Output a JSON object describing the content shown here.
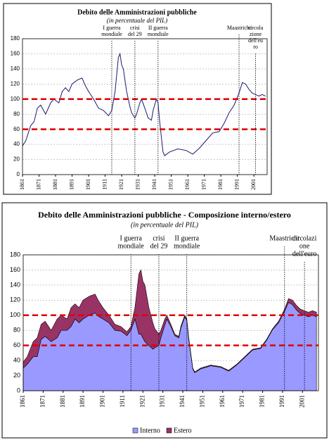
{
  "chart_data": [
    {
      "type": "line",
      "title": "Debito delle Amministrazioni pubbliche",
      "subtitle": "(in percentuale del PIL)",
      "x": [
        1861,
        1863,
        1866,
        1868,
        1870,
        1872,
        1875,
        1878,
        1880,
        1883,
        1885,
        1887,
        1889,
        1891,
        1894,
        1897,
        1899,
        1901,
        1904,
        1907,
        1910,
        1913,
        1915,
        1917,
        1919,
        1920,
        1921,
        1922,
        1924,
        1926,
        1927,
        1929,
        1930,
        1932,
        1933,
        1935,
        1937,
        1939,
        1940,
        1942,
        1943,
        1944,
        1946,
        1947,
        1950,
        1955,
        1960,
        1964,
        1968,
        1972,
        1976,
        1980,
        1983,
        1986,
        1989,
        1992,
        1994,
        1996,
        1998,
        2000,
        2002,
        2004,
        2006,
        2008
      ],
      "series": [
        {
          "color": "#1a1a6e",
          "values": [
            38,
            45,
            65,
            70,
            88,
            92,
            80,
            95,
            100,
            95,
            110,
            115,
            110,
            120,
            125,
            128,
            118,
            110,
            100,
            88,
            85,
            78,
            85,
            110,
            155,
            160,
            145,
            140,
            110,
            90,
            82,
            75,
            80,
            95,
            100,
            88,
            75,
            72,
            85,
            100,
            95,
            70,
            30,
            25,
            30,
            34,
            32,
            27,
            35,
            45,
            55,
            57,
            68,
            82,
            92,
            108,
            122,
            120,
            113,
            108,
            106,
            104,
            106,
            104
          ]
        }
      ],
      "xlim": [
        1861,
        2009
      ],
      "xticks": [
        1861,
        1871,
        1881,
        1891,
        1901,
        1911,
        1921,
        1931,
        1941,
        1951,
        1961,
        1971,
        1981,
        1991,
        2001
      ],
      "ylim": [
        0,
        180
      ],
      "yticks": [
        0,
        20,
        40,
        60,
        80,
        100,
        120,
        140,
        160,
        180
      ],
      "ref_lines": [
        100,
        60
      ],
      "ref_color": "#e00000",
      "annotations": [
        {
          "x": 1915,
          "lines": [
            "I guerra",
            "mondiale"
          ]
        },
        {
          "x": 1929,
          "lines": [
            "crisi",
            "del 29"
          ]
        },
        {
          "x": 1943,
          "lines": [
            "II guerra",
            "mondiale"
          ]
        },
        {
          "x": 1992,
          "lines": [
            "Maastricht"
          ]
        },
        {
          "x": 2002,
          "lines": [
            "circola",
            "zione",
            "dell'eu",
            "ro"
          ]
        }
      ]
    },
    {
      "type": "stacked-area",
      "title": "Debito delle Amministrazioni pubbliche - Composizione interno/estero",
      "subtitle": "(in percentuale del PIL)",
      "x": [
        1861,
        1863,
        1866,
        1868,
        1870,
        1872,
        1875,
        1878,
        1880,
        1883,
        1885,
        1887,
        1889,
        1891,
        1894,
        1897,
        1899,
        1901,
        1904,
        1907,
        1910,
        1913,
        1915,
        1917,
        1919,
        1920,
        1921,
        1922,
        1924,
        1926,
        1927,
        1929,
        1930,
        1932,
        1933,
        1935,
        1937,
        1939,
        1940,
        1942,
        1943,
        1944,
        1946,
        1947,
        1950,
        1955,
        1960,
        1964,
        1968,
        1972,
        1976,
        1980,
        1983,
        1986,
        1989,
        1992,
        1994,
        1996,
        1998,
        2000,
        2002,
        2004,
        2006,
        2008
      ],
      "series": [
        {
          "name": "Interno",
          "color": "#9999ff",
          "values": [
            30,
            35,
            45,
            45,
            68,
            72,
            65,
            70,
            80,
            80,
            85,
            95,
            90,
            95,
            100,
            103,
            98,
            95,
            90,
            80,
            79,
            73,
            80,
            95,
            75,
            75,
            70,
            65,
            60,
            55,
            57,
            60,
            70,
            87,
            95,
            85,
            73,
            70,
            83,
            98,
            93,
            68,
            29,
            24,
            29,
            33,
            31,
            26,
            34,
            44,
            54,
            56,
            67,
            81,
            90,
            105,
            117,
            114,
            107,
            102,
            100,
            98,
            100,
            98
          ]
        },
        {
          "name": "Estero",
          "color": "#993366",
          "values": [
            8,
            10,
            20,
            25,
            20,
            20,
            15,
            25,
            20,
            15,
            25,
            20,
            20,
            25,
            25,
            25,
            20,
            15,
            10,
            8,
            6,
            5,
            5,
            15,
            80,
            85,
            75,
            75,
            50,
            35,
            25,
            15,
            10,
            8,
            5,
            3,
            2,
            2,
            2,
            2,
            2,
            2,
            1,
            1,
            1,
            1,
            1,
            1,
            1,
            1,
            1,
            1,
            1,
            1,
            2,
            3,
            5,
            6,
            6,
            6,
            6,
            6,
            6,
            6
          ]
        }
      ],
      "xlim": [
        1861,
        2009
      ],
      "xticks": [
        1861,
        1871,
        1881,
        1891,
        1901,
        1911,
        1921,
        1931,
        1941,
        1951,
        1961,
        1971,
        1981,
        1991,
        2001
      ],
      "ylim": [
        0,
        180
      ],
      "yticks": [
        0,
        20,
        40,
        60,
        80,
        100,
        120,
        140,
        160,
        180
      ],
      "ref_lines": [
        100,
        60
      ],
      "ref_color": "#e00000",
      "legend": "bottom",
      "annotations": [
        {
          "x": 1915,
          "lines": [
            "I guerra",
            "mondiale"
          ]
        },
        {
          "x": 1929,
          "lines": [
            "crisi",
            "del 29"
          ]
        },
        {
          "x": 1943,
          "lines": [
            "II guerra",
            "mondiale"
          ]
        },
        {
          "x": 1992,
          "lines": [
            "Maastricht"
          ]
        },
        {
          "x": 2002,
          "lines": [
            "circolazi",
            "one",
            "dell'euro"
          ]
        }
      ]
    }
  ]
}
